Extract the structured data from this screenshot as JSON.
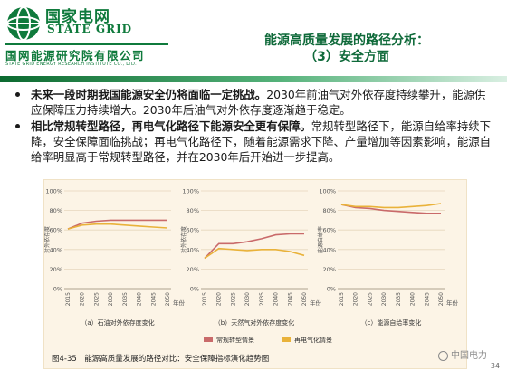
{
  "header": {
    "brand_cn": "国家电网",
    "brand_en": "STATE GRID",
    "institute_cn": "国网能源研究院有限公司",
    "institute_en": "STATE GRID ENERGY RESEARCH INSTITUTE CO., LTD.",
    "title_line1": "能源高质量发展的路径分析：",
    "title_line2": "（3）安全方面"
  },
  "bullets": [
    {
      "bold": "未来一段时期我国能源安全仍将面临一定挑战。",
      "text": "2030年前油气对外依存度持续攀升，能源供应保障压力持续增大。2030年后油气对外依存度逐渐趋于稳定。"
    },
    {
      "bold": "相比常规转型路径，再电气化路径下能源安全更有保障。",
      "text": "常规转型路径下，能源自给率持续下降，安全保障面临挑战；再电气化路径下，随着能源需求下降、产量增加等因素影响，能源自给率明显高于常规转型路径，并在2030年后开始进一步提高。"
    }
  ],
  "colors": {
    "conventional": "#c96a6a",
    "reelectric": "#e9b23a",
    "grid": "#e6d6bd",
    "brand": "#0f7a3c"
  },
  "chart_data": [
    {
      "type": "line",
      "title": "",
      "caption": "（a）石油对外依存度变化",
      "ylabel": "对外依存度",
      "xlabel": "年份",
      "x": [
        "2015",
        "2020",
        "2025",
        "2030",
        "2035",
        "2040",
        "2045",
        "2050"
      ],
      "yticks": [
        "0%",
        "20%",
        "40%",
        "60%",
        "80%",
        "100%"
      ],
      "ylim": [
        0,
        100
      ],
      "series": [
        {
          "name": "常规转型情景",
          "values": [
            61,
            67,
            69,
            70,
            70,
            70,
            70,
            70
          ]
        },
        {
          "name": "再电气化情景",
          "values": [
            61,
            65,
            66,
            66,
            65,
            64,
            63,
            62
          ]
        }
      ]
    },
    {
      "type": "line",
      "title": "",
      "caption": "（b）天然气对外依存度变化",
      "ylabel": "对外依存度",
      "xlabel": "年份",
      "x": [
        "2015",
        "2020",
        "2025",
        "2030",
        "2035",
        "2040",
        "2045",
        "2050"
      ],
      "yticks": [
        "0%",
        "20%",
        "40%",
        "60%",
        "80%",
        "100%"
      ],
      "ylim": [
        0,
        100
      ],
      "series": [
        {
          "name": "常规转型情景",
          "values": [
            31,
            46,
            46,
            48,
            51,
            55,
            56,
            56
          ]
        },
        {
          "name": "再电气化情景",
          "values": [
            31,
            41,
            40,
            39,
            40,
            40,
            38,
            34
          ]
        }
      ]
    },
    {
      "type": "line",
      "title": "",
      "caption": "（c）能源自给率变化",
      "ylabel": "能源自给率",
      "xlabel": "年份",
      "x": [
        "2015",
        "2020",
        "2025",
        "2030",
        "2035",
        "2040",
        "2045",
        "2050"
      ],
      "yticks": [
        "0%",
        "20%",
        "40%",
        "60%",
        "80%",
        "100%"
      ],
      "ylim": [
        0,
        100
      ],
      "series": [
        {
          "name": "常规转型情景",
          "values": [
            86,
            83,
            82,
            80,
            79,
            78,
            77,
            77
          ]
        },
        {
          "name": "再电气化情景",
          "values": [
            86,
            84,
            84,
            83,
            83,
            84,
            85,
            87
          ]
        }
      ]
    }
  ],
  "legend": [
    {
      "name": "常规转型情景"
    },
    {
      "name": "再电气化情景"
    }
  ],
  "figure_caption": "图4-35　能源高质量发展的路径对比：安全保障指标演化趋势图",
  "page_number": "34",
  "watermark": "中国电力"
}
